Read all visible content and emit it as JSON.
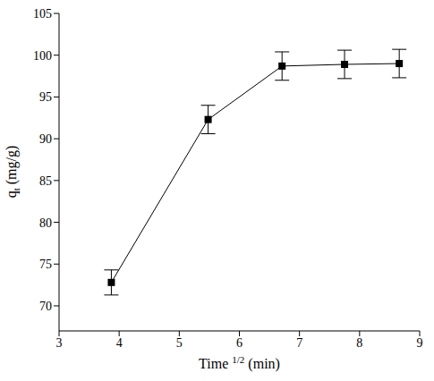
{
  "chart_data": {
    "type": "line",
    "x_label": "Time 1/2 (min)",
    "y_label": "qt (mg/g)",
    "x": [
      3.87,
      5.48,
      6.71,
      7.75,
      8.66
    ],
    "values": [
      72.8,
      92.3,
      98.7,
      98.9,
      99.0
    ],
    "errors": [
      1.5,
      1.7,
      1.7,
      1.7,
      1.7
    ],
    "color": "#000000",
    "marker": "square",
    "xlim": [
      3,
      9
    ],
    "xticks": [
      3,
      4,
      5,
      6,
      7,
      8,
      9
    ],
    "ylim": [
      67,
      105
    ],
    "yticks": [
      70,
      75,
      80,
      85,
      90,
      95,
      100,
      105
    ],
    "grid": false
  }
}
